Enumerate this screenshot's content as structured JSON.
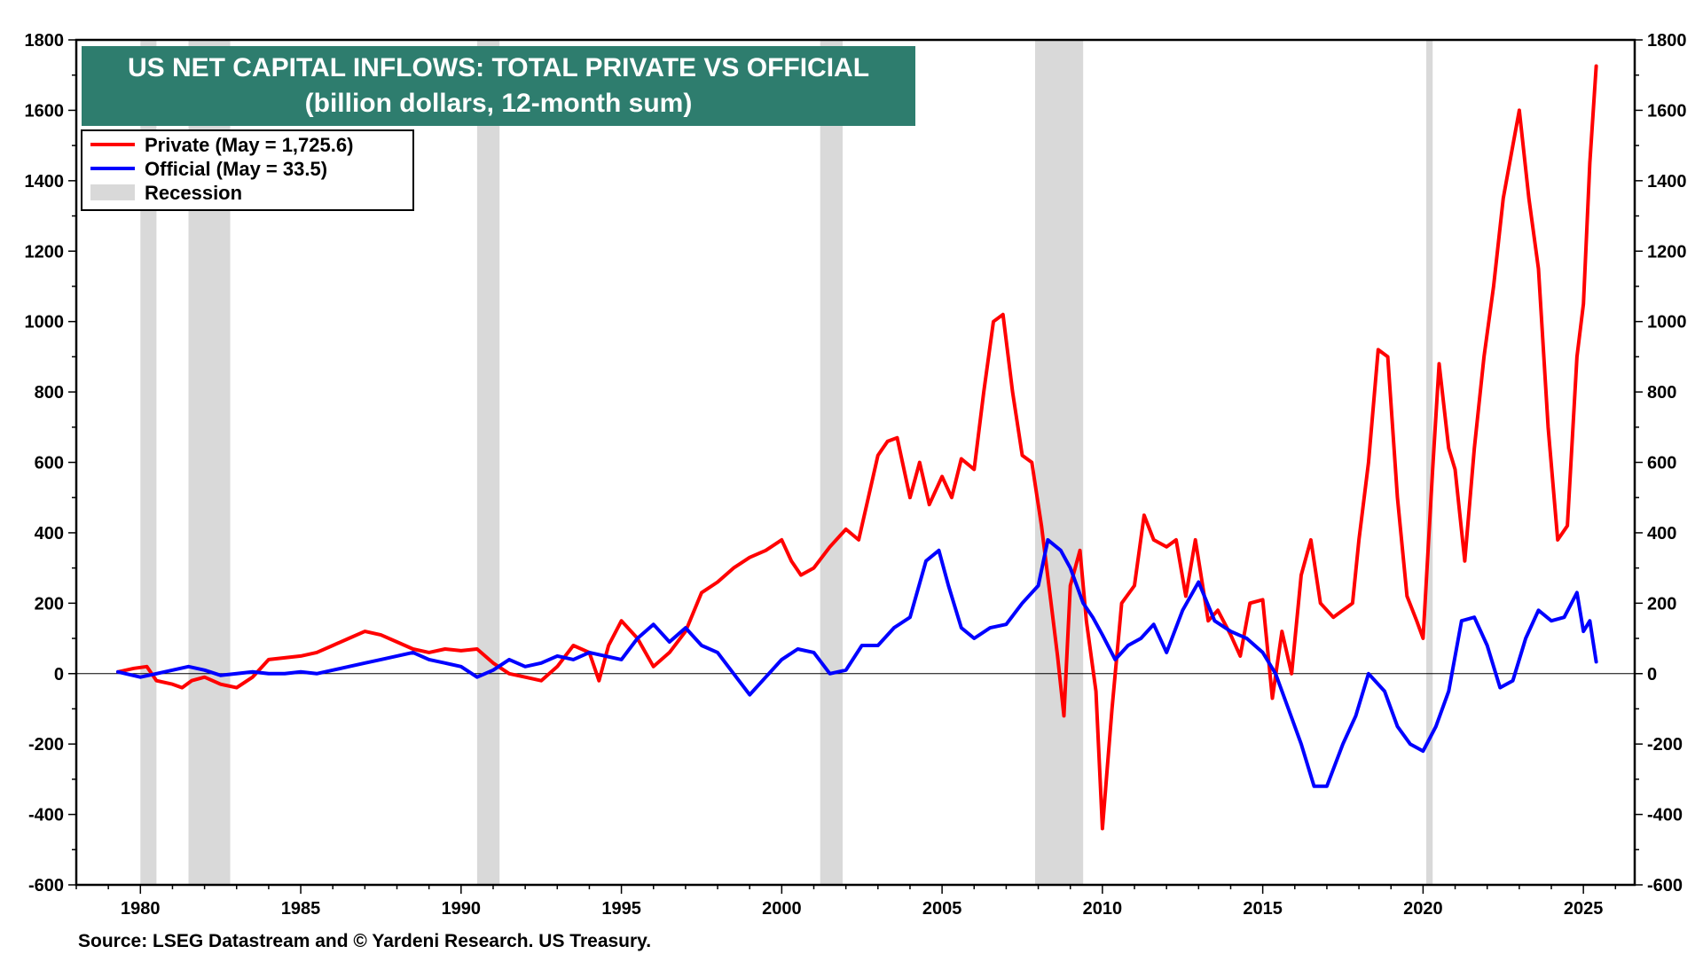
{
  "chart_data": {
    "type": "line",
    "title": "US NET CAPITAL INFLOWS: TOTAL PRIVATE VS OFFICIAL",
    "subtitle": "(billion dollars, 12-month sum)",
    "source": "Source: LSEG Datastream and © Yardeni Research. US Treasury.",
    "xlim": [
      1978,
      2026.6
    ],
    "ylim": [
      -600,
      1800
    ],
    "x_ticks": [
      1980,
      1985,
      1990,
      1995,
      2000,
      2005,
      2010,
      2015,
      2020,
      2025
    ],
    "y_ticks": [
      -600,
      -400,
      -200,
      0,
      200,
      400,
      600,
      800,
      1000,
      1200,
      1400,
      1600,
      1800
    ],
    "grid": false,
    "dual_axis": true,
    "legend_position": "top-left",
    "colors": {
      "private": "#ff0000",
      "official": "#0000ff",
      "recession": "#d9d9d9",
      "title_bg": "#2e7d6e"
    },
    "legend": [
      {
        "label": "Private (May = 1,725.6)",
        "kind": "line",
        "color": "#ff0000"
      },
      {
        "label": "Official (May = 33.5)",
        "kind": "line",
        "color": "#0000ff"
      },
      {
        "label": "Recession",
        "kind": "band",
        "color": "#d9d9d9"
      }
    ],
    "recessions": [
      [
        1980.0,
        1980.5
      ],
      [
        1981.5,
        1982.8
      ],
      [
        1990.5,
        1991.2
      ],
      [
        2001.2,
        2001.9
      ],
      [
        2007.9,
        2009.4
      ],
      [
        2020.1,
        2020.3
      ]
    ],
    "series": [
      {
        "name": "Private (May = 1,725.6)",
        "color": "#ff0000",
        "points": [
          [
            1979.3,
            5
          ],
          [
            1979.8,
            15
          ],
          [
            1980.2,
            20
          ],
          [
            1980.5,
            -20
          ],
          [
            1981.0,
            -30
          ],
          [
            1981.3,
            -40
          ],
          [
            1981.6,
            -20
          ],
          [
            1982.0,
            -10
          ],
          [
            1982.5,
            -30
          ],
          [
            1983.0,
            -40
          ],
          [
            1983.5,
            -10
          ],
          [
            1984.0,
            40
          ],
          [
            1984.5,
            45
          ],
          [
            1985.0,
            50
          ],
          [
            1985.5,
            60
          ],
          [
            1986.0,
            80
          ],
          [
            1986.5,
            100
          ],
          [
            1987.0,
            120
          ],
          [
            1987.5,
            110
          ],
          [
            1988.0,
            90
          ],
          [
            1988.5,
            70
          ],
          [
            1989.0,
            60
          ],
          [
            1989.5,
            70
          ],
          [
            1990.0,
            65
          ],
          [
            1990.5,
            70
          ],
          [
            1991.0,
            30
          ],
          [
            1991.5,
            0
          ],
          [
            1992.0,
            -10
          ],
          [
            1992.5,
            -20
          ],
          [
            1993.0,
            20
          ],
          [
            1993.5,
            80
          ],
          [
            1994.0,
            60
          ],
          [
            1994.3,
            -20
          ],
          [
            1994.6,
            80
          ],
          [
            1995.0,
            150
          ],
          [
            1995.5,
            100
          ],
          [
            1996.0,
            20
          ],
          [
            1996.5,
            60
          ],
          [
            1997.0,
            120
          ],
          [
            1997.5,
            230
          ],
          [
            1998.0,
            260
          ],
          [
            1998.5,
            300
          ],
          [
            1999.0,
            330
          ],
          [
            1999.5,
            350
          ],
          [
            2000.0,
            380
          ],
          [
            2000.3,
            320
          ],
          [
            2000.6,
            280
          ],
          [
            2001.0,
            300
          ],
          [
            2001.5,
            360
          ],
          [
            2002.0,
            410
          ],
          [
            2002.4,
            380
          ],
          [
            2002.7,
            500
          ],
          [
            2003.0,
            620
          ],
          [
            2003.3,
            660
          ],
          [
            2003.6,
            670
          ],
          [
            2004.0,
            500
          ],
          [
            2004.3,
            600
          ],
          [
            2004.6,
            480
          ],
          [
            2005.0,
            560
          ],
          [
            2005.3,
            500
          ],
          [
            2005.6,
            610
          ],
          [
            2006.0,
            580
          ],
          [
            2006.3,
            800
          ],
          [
            2006.6,
            1000
          ],
          [
            2006.9,
            1020
          ],
          [
            2007.2,
            800
          ],
          [
            2007.5,
            620
          ],
          [
            2007.8,
            600
          ],
          [
            2008.1,
            420
          ],
          [
            2008.4,
            200
          ],
          [
            2008.6,
            50
          ],
          [
            2008.8,
            -120
          ],
          [
            2009.0,
            250
          ],
          [
            2009.3,
            350
          ],
          [
            2009.5,
            150
          ],
          [
            2009.8,
            -50
          ],
          [
            2010.0,
            -440
          ],
          [
            2010.3,
            -100
          ],
          [
            2010.6,
            200
          ],
          [
            2011.0,
            250
          ],
          [
            2011.3,
            450
          ],
          [
            2011.6,
            380
          ],
          [
            2012.0,
            360
          ],
          [
            2012.3,
            380
          ],
          [
            2012.6,
            220
          ],
          [
            2012.9,
            380
          ],
          [
            2013.3,
            150
          ],
          [
            2013.6,
            180
          ],
          [
            2014.0,
            110
          ],
          [
            2014.3,
            50
          ],
          [
            2014.6,
            200
          ],
          [
            2015.0,
            210
          ],
          [
            2015.3,
            -70
          ],
          [
            2015.6,
            120
          ],
          [
            2015.9,
            0
          ],
          [
            2016.2,
            280
          ],
          [
            2016.5,
            380
          ],
          [
            2016.8,
            200
          ],
          [
            2017.2,
            160
          ],
          [
            2017.5,
            180
          ],
          [
            2017.8,
            200
          ],
          [
            2018.0,
            380
          ],
          [
            2018.3,
            600
          ],
          [
            2018.6,
            920
          ],
          [
            2018.9,
            900
          ],
          [
            2019.2,
            500
          ],
          [
            2019.5,
            220
          ],
          [
            2019.8,
            150
          ],
          [
            2020.0,
            100
          ],
          [
            2020.3,
            580
          ],
          [
            2020.5,
            880
          ],
          [
            2020.8,
            640
          ],
          [
            2021.0,
            580
          ],
          [
            2021.3,
            320
          ],
          [
            2021.6,
            640
          ],
          [
            2021.9,
            900
          ],
          [
            2022.2,
            1100
          ],
          [
            2022.5,
            1350
          ],
          [
            2022.8,
            1500
          ],
          [
            2023.0,
            1600
          ],
          [
            2023.3,
            1350
          ],
          [
            2023.6,
            1150
          ],
          [
            2023.9,
            700
          ],
          [
            2024.2,
            380
          ],
          [
            2024.5,
            420
          ],
          [
            2024.8,
            900
          ],
          [
            2025.0,
            1050
          ],
          [
            2025.2,
            1450
          ],
          [
            2025.4,
            1725.6
          ]
        ]
      },
      {
        "name": "Official (May = 33.5)",
        "color": "#0000ff",
        "points": [
          [
            1979.3,
            5
          ],
          [
            1980.0,
            -10
          ],
          [
            1980.5,
            0
          ],
          [
            1981.0,
            10
          ],
          [
            1981.5,
            20
          ],
          [
            1982.0,
            10
          ],
          [
            1982.5,
            -5
          ],
          [
            1983.0,
            0
          ],
          [
            1983.5,
            5
          ],
          [
            1984.0,
            0
          ],
          [
            1984.5,
            0
          ],
          [
            1985.0,
            5
          ],
          [
            1985.5,
            0
          ],
          [
            1986.0,
            10
          ],
          [
            1986.5,
            20
          ],
          [
            1987.0,
            30
          ],
          [
            1987.5,
            40
          ],
          [
            1988.0,
            50
          ],
          [
            1988.5,
            60
          ],
          [
            1989.0,
            40
          ],
          [
            1989.5,
            30
          ],
          [
            1990.0,
            20
          ],
          [
            1990.5,
            -10
          ],
          [
            1991.0,
            10
          ],
          [
            1991.5,
            40
          ],
          [
            1992.0,
            20
          ],
          [
            1992.5,
            30
          ],
          [
            1993.0,
            50
          ],
          [
            1993.5,
            40
          ],
          [
            1994.0,
            60
          ],
          [
            1994.5,
            50
          ],
          [
            1995.0,
            40
          ],
          [
            1995.5,
            100
          ],
          [
            1996.0,
            140
          ],
          [
            1996.5,
            90
          ],
          [
            1997.0,
            130
          ],
          [
            1997.5,
            80
          ],
          [
            1998.0,
            60
          ],
          [
            1998.5,
            0
          ],
          [
            1999.0,
            -60
          ],
          [
            1999.5,
            -10
          ],
          [
            2000.0,
            40
          ],
          [
            2000.5,
            70
          ],
          [
            2001.0,
            60
          ],
          [
            2001.5,
            0
          ],
          [
            2002.0,
            10
          ],
          [
            2002.5,
            80
          ],
          [
            2003.0,
            80
          ],
          [
            2003.5,
            130
          ],
          [
            2004.0,
            160
          ],
          [
            2004.5,
            320
          ],
          [
            2004.9,
            350
          ],
          [
            2005.2,
            250
          ],
          [
            2005.6,
            130
          ],
          [
            2006.0,
            100
          ],
          [
            2006.5,
            130
          ],
          [
            2007.0,
            140
          ],
          [
            2007.5,
            200
          ],
          [
            2008.0,
            250
          ],
          [
            2008.3,
            380
          ],
          [
            2008.7,
            350
          ],
          [
            2009.0,
            300
          ],
          [
            2009.4,
            200
          ],
          [
            2009.7,
            160
          ],
          [
            2010.0,
            110
          ],
          [
            2010.4,
            40
          ],
          [
            2010.8,
            80
          ],
          [
            2011.2,
            100
          ],
          [
            2011.6,
            140
          ],
          [
            2012.0,
            60
          ],
          [
            2012.5,
            180
          ],
          [
            2013.0,
            260
          ],
          [
            2013.5,
            150
          ],
          [
            2014.0,
            120
          ],
          [
            2014.5,
            100
          ],
          [
            2015.0,
            60
          ],
          [
            2015.4,
            0
          ],
          [
            2015.8,
            -100
          ],
          [
            2016.2,
            -200
          ],
          [
            2016.6,
            -320
          ],
          [
            2017.0,
            -320
          ],
          [
            2017.5,
            -200
          ],
          [
            2017.9,
            -120
          ],
          [
            2018.3,
            0
          ],
          [
            2018.8,
            -50
          ],
          [
            2019.2,
            -150
          ],
          [
            2019.6,
            -200
          ],
          [
            2020.0,
            -220
          ],
          [
            2020.4,
            -150
          ],
          [
            2020.8,
            -50
          ],
          [
            2021.2,
            150
          ],
          [
            2021.6,
            160
          ],
          [
            2022.0,
            80
          ],
          [
            2022.4,
            -40
          ],
          [
            2022.8,
            -20
          ],
          [
            2023.2,
            100
          ],
          [
            2023.6,
            180
          ],
          [
            2024.0,
            150
          ],
          [
            2024.4,
            160
          ],
          [
            2024.8,
            230
          ],
          [
            2025.0,
            120
          ],
          [
            2025.2,
            150
          ],
          [
            2025.4,
            33.5
          ]
        ]
      }
    ]
  }
}
